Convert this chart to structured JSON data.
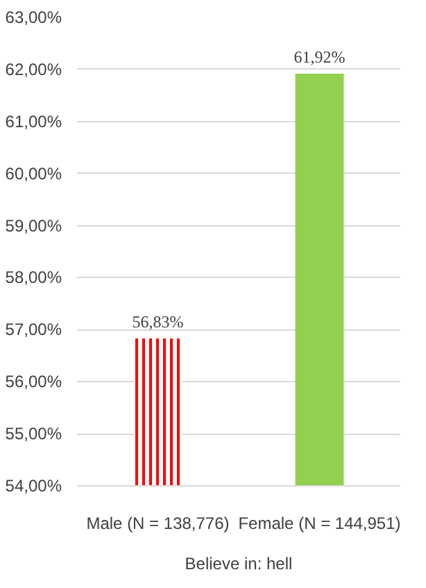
{
  "chart_data": {
    "type": "bar",
    "categories": [
      "Male (N = 138,776)",
      "Female (N = 144,951)"
    ],
    "values": [
      56.83,
      61.92
    ],
    "colors": [
      "#ff0000",
      "#92d050"
    ],
    "value_labels": [
      "56,83%",
      "61,92%"
    ],
    "xlabel": "Believe in: hell",
    "ylim": [
      54,
      63
    ],
    "yticks": [
      {
        "value": 54,
        "label": "54,00%"
      },
      {
        "value": 55,
        "label": "55,00%"
      },
      {
        "value": 56,
        "label": "56,00%"
      },
      {
        "value": 57,
        "label": "57,00%"
      },
      {
        "value": 58,
        "label": "58,00%"
      },
      {
        "value": 59,
        "label": "59,00%"
      },
      {
        "value": 60,
        "label": "60,00%"
      },
      {
        "value": 61,
        "label": "61,00%"
      },
      {
        "value": 62,
        "label": "62,00%"
      },
      {
        "value": 63,
        "label": "63,00%"
      }
    ],
    "grid": "y"
  }
}
